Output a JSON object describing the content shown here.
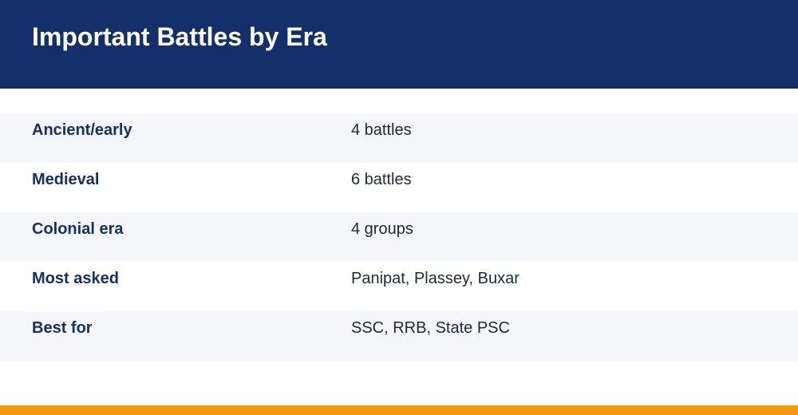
{
  "header": {
    "title": "Important Battles by Era"
  },
  "rows": [
    {
      "label": "Ancient/early",
      "value": "4 battles"
    },
    {
      "label": "Medieval",
      "value": "6 battles"
    },
    {
      "label": "Colonial era",
      "value": "4 groups"
    },
    {
      "label": "Most asked",
      "value": "Panipat, Plassey, Buxar"
    },
    {
      "label": "Best for",
      "value": "SSC, RRB, State PSC"
    }
  ],
  "colors": {
    "header_background": "#14306b",
    "accent_bar": "#f19b12",
    "row_shade": "#f5f6fa"
  }
}
